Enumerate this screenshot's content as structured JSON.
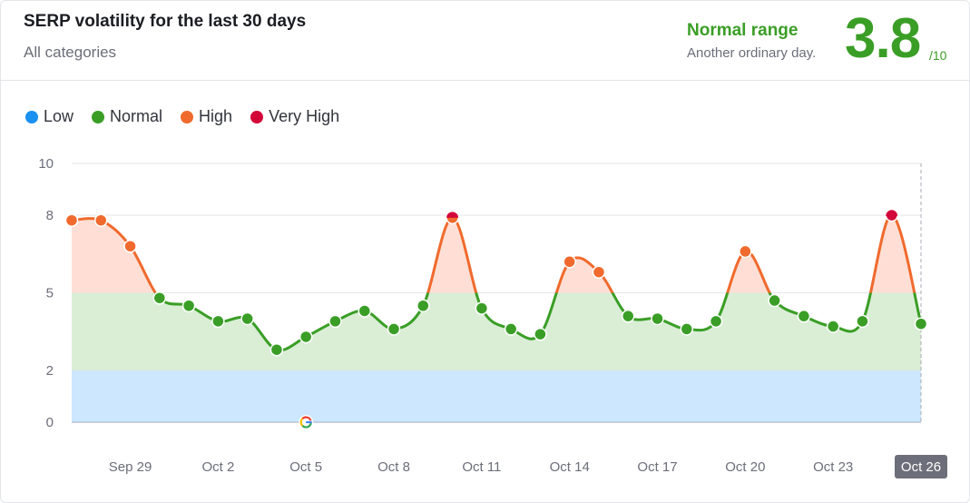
{
  "header": {
    "title": "SERP volatility for the last 30 days",
    "subtitle": "All categories",
    "range_label": "Normal range",
    "range_desc": "Another ordinary day.",
    "score": "3.8",
    "score_max": "/10"
  },
  "legend": [
    {
      "label": "Low",
      "color": "#1a90f0"
    },
    {
      "label": "Normal",
      "color": "#3a9e26"
    },
    {
      "label": "High",
      "color": "#f06a2d"
    },
    {
      "label": "Very High",
      "color": "#d3063a"
    }
  ],
  "colors": {
    "low_band": "#cce7ff",
    "normal_band": "#daeed6",
    "high_band": "#ffdfd5",
    "normal_line": "#3a9e26",
    "high_line": "#f06a2d",
    "very_high": "#d3063a",
    "highlight_bg": "#6c6e79"
  },
  "chart_data": {
    "type": "line",
    "y_ticks": [
      0,
      2,
      5,
      8,
      10
    ],
    "ylim": [
      0,
      10
    ],
    "bands": [
      {
        "name": "Low",
        "from": 0,
        "to": 2
      },
      {
        "name": "Normal",
        "from": 2,
        "to": 5
      },
      {
        "name": "High",
        "from": 5,
        "to": 8
      },
      {
        "name": "Very High",
        "from": 8,
        "to": 10
      }
    ],
    "x_labels": [
      {
        "label": "Sep 29",
        "index": 2
      },
      {
        "label": "Oct 2",
        "index": 5
      },
      {
        "label": "Oct 5",
        "index": 8
      },
      {
        "label": "Oct 8",
        "index": 11
      },
      {
        "label": "Oct 11",
        "index": 14
      },
      {
        "label": "Oct 14",
        "index": 17
      },
      {
        "label": "Oct 17",
        "index": 20
      },
      {
        "label": "Oct 20",
        "index": 23
      },
      {
        "label": "Oct 23",
        "index": 26
      },
      {
        "label": "Oct 26",
        "index": 29
      }
    ],
    "highlight_index": 29,
    "google_update_index": 8,
    "values": [
      7.8,
      7.8,
      6.8,
      4.8,
      4.5,
      3.9,
      4.0,
      2.8,
      3.3,
      3.9,
      4.3,
      3.6,
      4.5,
      7.9,
      4.4,
      3.6,
      3.4,
      6.2,
      5.8,
      4.1,
      4.0,
      3.6,
      3.9,
      6.6,
      4.7,
      4.1,
      3.7,
      3.9,
      8.0,
      3.8
    ]
  }
}
